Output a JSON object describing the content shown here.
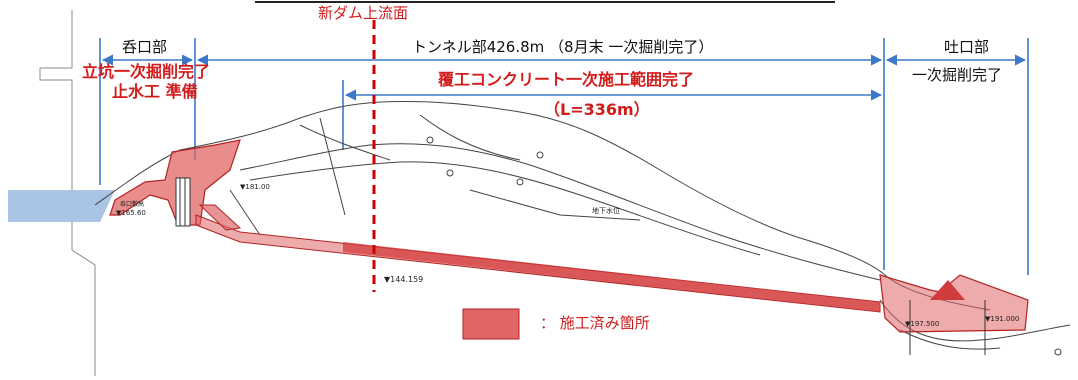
{
  "labels": {
    "new_dam_face": "新ダム上流面",
    "inlet_section": "呑口部",
    "tunnel_section": "トンネル部426.8m （8月末 一次掘削完了）",
    "outlet_section": "吐口部",
    "outlet_status": "一次掘削完了",
    "shaft_status_line1": "立坑一次掘削完了",
    "shaft_status_line2": "止水工 準備",
    "lining_status": "覆工コンクリート一次施工範囲完了",
    "lining_length": "（L=336m）",
    "legend_text": "： 施工済み箇所",
    "elev_inlet_left": "▼165.60",
    "elev_inlet_right": "▼181.00",
    "elev_mid": "▼144.159",
    "elev_outlet_left": "▼197.500",
    "elev_outlet_right": "▼191.000",
    "groundwater": "地下水位",
    "inlet_note": "呑口敷高"
  },
  "colors": {
    "completed_fill": "#e06666",
    "completed_dark": "#c0392b",
    "dam_line": "#cc0000",
    "dimension_line": "#3a78c9",
    "water": "#a9c4e4"
  }
}
